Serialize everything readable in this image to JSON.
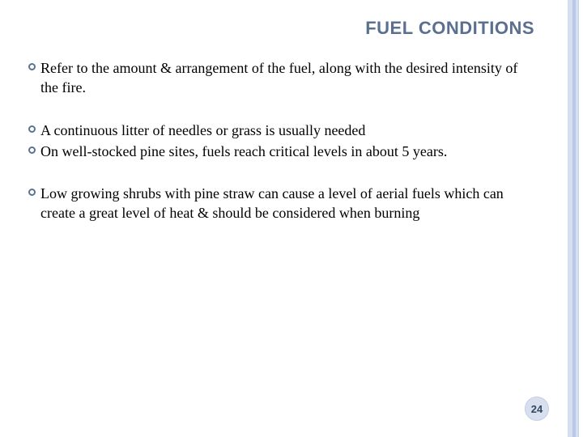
{
  "title": {
    "text": "FUEL CONDITIONS",
    "fontsize": 22,
    "color": "#5b7090"
  },
  "bullets": {
    "fontsize": 18,
    "text_color": "#000000",
    "marker_color": "#5c7291",
    "groups": [
      {
        "items": [
          "Refer to the amount & arrangement of the fuel, along with the desired intensity of the fire."
        ]
      },
      {
        "items": [
          "A continuous litter of needles or grass is usually needed",
          "On well-stocked pine sites, fuels reach critical levels in about 5 years."
        ]
      },
      {
        "items": [
          "Low growing shrubs with pine straw can cause a level of aerial fuels which can create a great level of heat & should be considered when burning"
        ]
      }
    ]
  },
  "page_number": {
    "value": "24",
    "fontsize": 13,
    "bg": "#d8e0f0",
    "color": "#33475f"
  },
  "stripes": {
    "colors": [
      "#d6dff0",
      "#b9c8e4",
      "#d6dff0",
      "#ffffff"
    ]
  }
}
